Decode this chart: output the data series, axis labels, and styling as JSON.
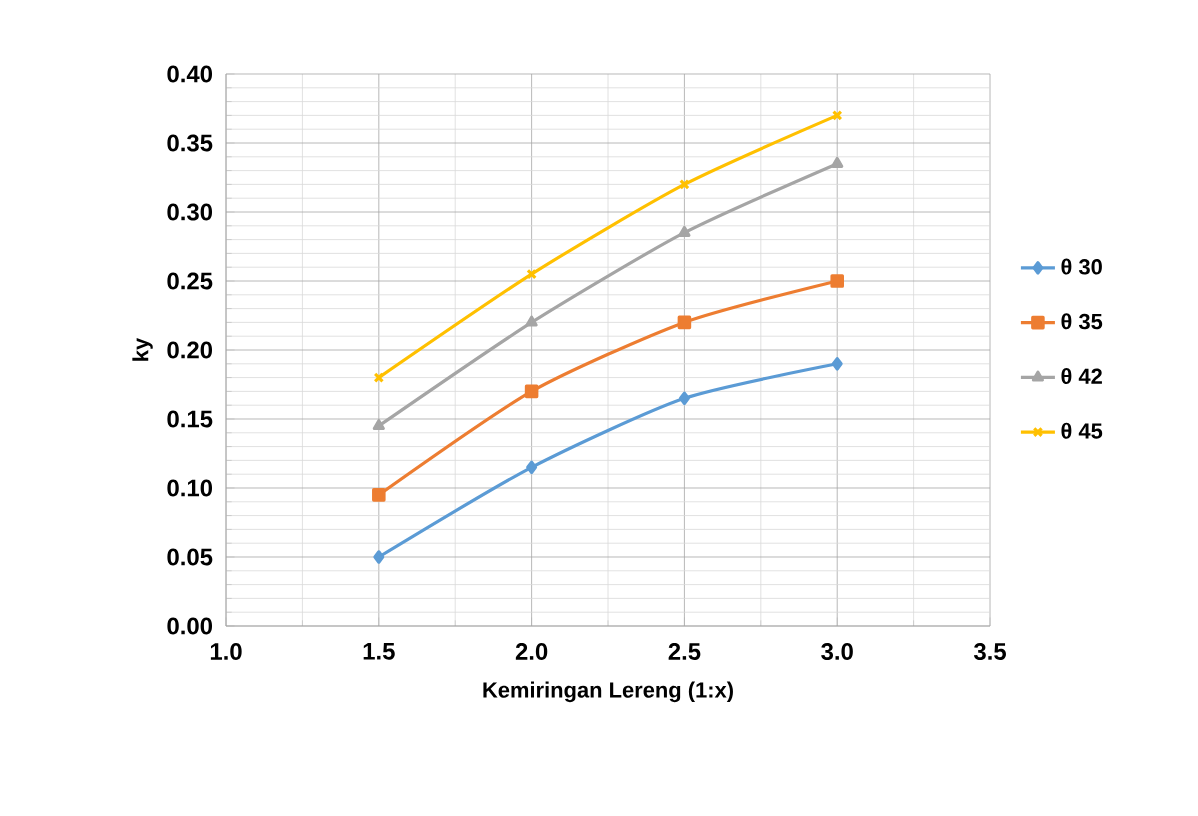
{
  "chart_data": {
    "type": "line",
    "xlabel": "Kemiringan Lereng (1:x)",
    "ylabel": "ky",
    "x": [
      1.5,
      2.0,
      2.5,
      3.0
    ],
    "series": [
      {
        "name": "θ 30",
        "color": "#5b9bd5",
        "marker": "diamond",
        "values": [
          0.05,
          0.115,
          0.165,
          0.19
        ]
      },
      {
        "name": "θ 35",
        "color": "#ed7d31",
        "marker": "square",
        "values": [
          0.095,
          0.17,
          0.22,
          0.25
        ]
      },
      {
        "name": "θ 42",
        "color": "#a5a5a5",
        "marker": "triangle",
        "values": [
          0.145,
          0.22,
          0.285,
          0.335
        ]
      },
      {
        "name": "θ 45",
        "color": "#ffc000",
        "marker": "cross",
        "values": [
          0.18,
          0.255,
          0.32,
          0.37
        ]
      }
    ],
    "xlim": [
      1.0,
      3.5
    ],
    "xticks": [
      {
        "value": 1.0,
        "label": "1.0"
      },
      {
        "value": 1.5,
        "label": "1.5"
      },
      {
        "value": 2.0,
        "label": "2.0"
      },
      {
        "value": 2.5,
        "label": "2.5"
      },
      {
        "value": 3.0,
        "label": "3.0"
      },
      {
        "value": 3.5,
        "label": "3.5"
      }
    ],
    "ylim": [
      0,
      0.4
    ],
    "yticks": [
      {
        "value": 0,
        "label": "0.00"
      },
      {
        "value": 0.05,
        "label": "0.05"
      },
      {
        "value": 0.1,
        "label": "0.10"
      },
      {
        "value": 0.15,
        "label": "0.15"
      },
      {
        "value": 0.2,
        "label": "0.20"
      },
      {
        "value": 0.25,
        "label": "0.25"
      },
      {
        "value": 0.3,
        "label": "0.30"
      },
      {
        "value": 0.35,
        "label": "0.35"
      },
      {
        "value": 0.4,
        "label": "0.40"
      }
    ],
    "grid": true,
    "legend": "right",
    "line_style": "solid"
  }
}
